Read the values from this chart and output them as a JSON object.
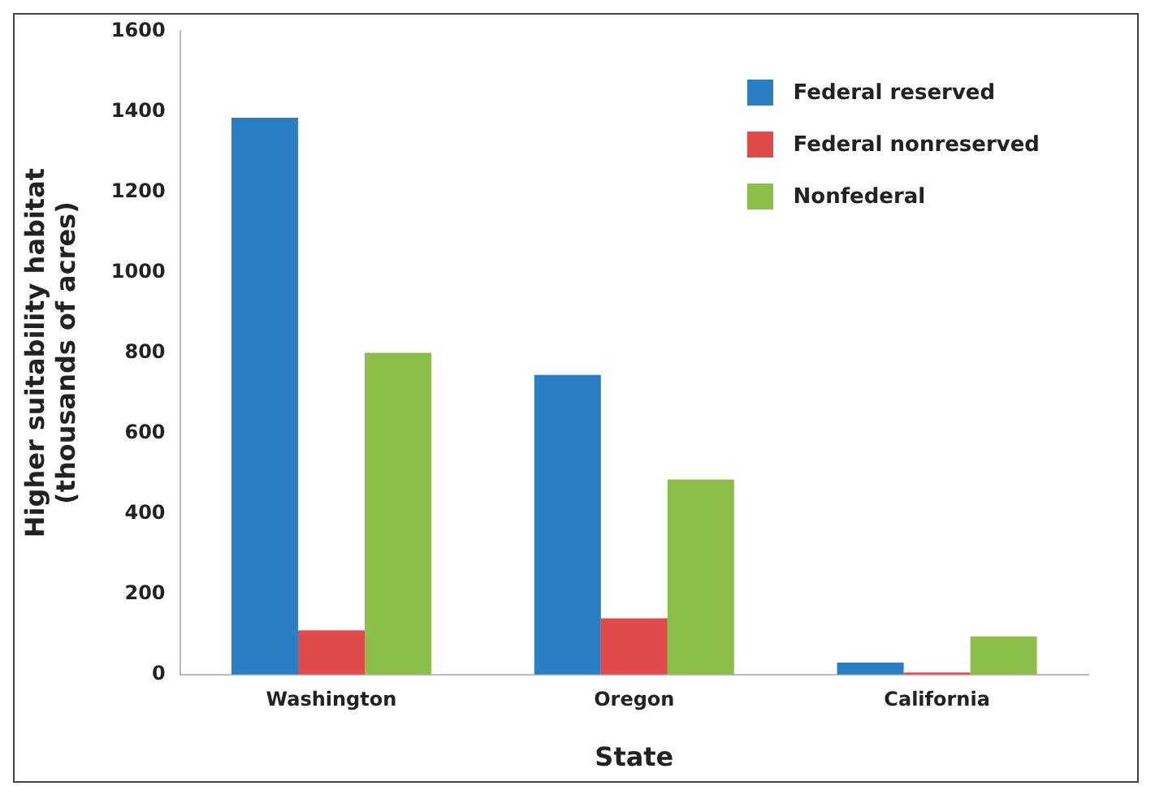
{
  "chart_data": {
    "type": "bar",
    "xlabel": "State",
    "ylabel": "Higher suitability habitat\n(thousands of acres)",
    "categories": [
      "Washington",
      "Oregon",
      "California"
    ],
    "series": [
      {
        "name": "Federal reserved",
        "color": "#2a7fc4",
        "values": [
          1385,
          745,
          30
        ]
      },
      {
        "name": "Federal nonreserved",
        "color": "#e04a4a",
        "values": [
          110,
          140,
          5
        ]
      },
      {
        "name": "Nonfederal",
        "color": "#8cbf4a",
        "values": [
          800,
          485,
          95
        ]
      }
    ],
    "ylim": [
      0,
      1600
    ],
    "yticks": [
      0,
      200,
      400,
      600,
      800,
      1000,
      1200,
      1400,
      1600
    ],
    "grid": false,
    "legend": "top right"
  }
}
